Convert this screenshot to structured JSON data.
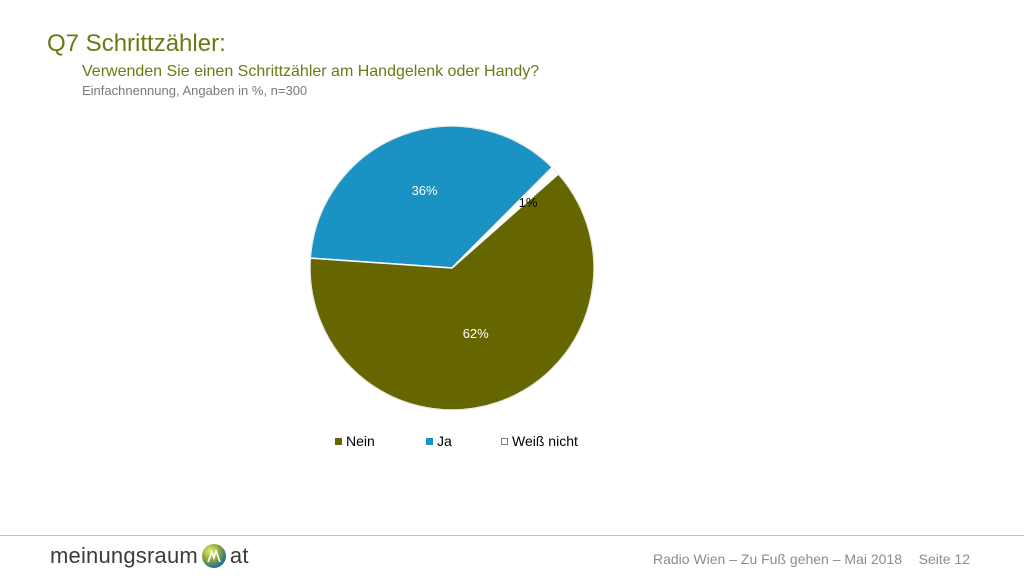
{
  "header": {
    "title": "Q7 Schrittzähler:",
    "subtitle": "Verwenden Sie einen Schrittzähler am Handgelenk oder Handy?",
    "note": "Einfachnennung, Angaben in %, n=300"
  },
  "chart_data": {
    "type": "pie",
    "categories": [
      "Nein",
      "Ja",
      "Weiß nicht"
    ],
    "values": [
      62,
      36,
      1
    ],
    "labels": [
      "62%",
      "36%",
      "1%"
    ],
    "colors": [
      "#666600",
      "#1a92c3",
      "#ffffff"
    ],
    "legend_position": "bottom"
  },
  "footer": {
    "logo_left": "meinungsraum",
    "logo_right": "at",
    "text": "Radio Wien – Zu Fuß gehen – Mai 2018",
    "page": "Seite 12"
  }
}
